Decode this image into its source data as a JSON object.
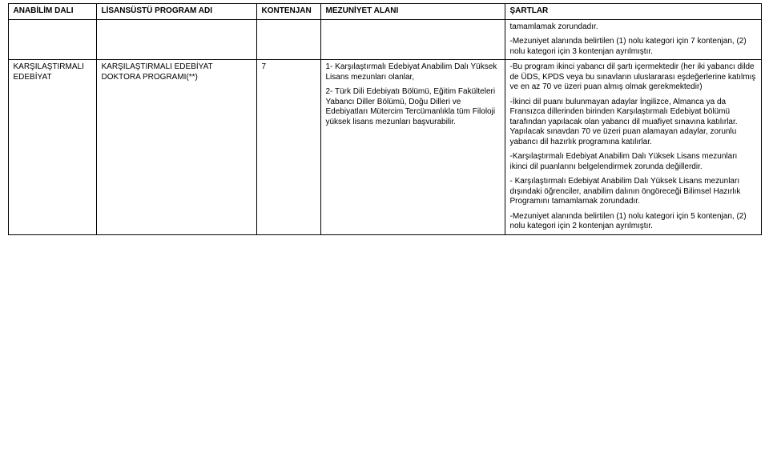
{
  "headers": {
    "col1": "ANABİLİM DALI",
    "col2": "LİSANSÜSTÜ PROGRAM ADI",
    "col3": "KONTENJAN",
    "col4": "MEZUNİYET ALANI",
    "col5": "ŞARTLAR"
  },
  "row1_col5_a": "tamamlamak zorundadır.",
  "row1_col5_b": "-Mezuniyet alanında belirtilen (1) nolu kategori için 7 kontenjan, (2) nolu kategori için 3 kontenjan ayrılmıştır.",
  "row2": {
    "col1": "KARŞILAŞTIRMALI EDEBİYAT",
    "col2": "KARŞILAŞTIRMALI EDEBİYAT DOKTORA PROGRAMI(**)",
    "col3": "7",
    "col4_a": "1- Karşılaştırmalı Edebiyat Anabilim Dalı Yüksek Lisans mezunları olanlar,",
    "col4_b": "2- Türk Dili Edebiyatı Bölümü, Eğitim Fakülteleri Yabancı Diller Bölümü, Doğu Dilleri ve Edebiyatları Mütercim Tercümanlıkla tüm Filoloji yüksek lisans mezunları başvurabilir.",
    "col5_a": "-Bu program ikinci yabancı dil şartı içermektedir (her iki yabancı dilde de ÜDS, KPDS veya bu sınavların uluslararası eşdeğerlerine katılmış ve en az 70 ve üzeri puan almış olmak gerekmektedir)",
    "col5_b": "-İkinci dil puanı bulunmayan adaylar İngilizce, Almanca ya da Fransızca dillerinden birinden Karşılaştırmalı Edebiyat bölümü tarafından yapılacak olan yabancı dil muafiyet sınavına katılırlar. Yapılacak sınavdan 70 ve üzeri puan alamayan adaylar,  zorunlu yabancı dil hazırlık programına katılırlar.",
    "col5_c": "-Karşılaştırmalı Edebiyat Anabilim Dalı Yüksek Lisans mezunları ikinci dil puanlarını belgelendirmek zorunda değillerdir.",
    "col5_d": "- Karşılaştırmalı Edebiyat Anabilim Dalı Yüksek Lisans mezunları dışındaki öğrenciler, anabilim dalının öngöreceği Bilimsel Hazırlık Programını tamamlamak zorundadır.",
    "col5_e": "-Mezuniyet alanında belirtilen (1) nolu kategori için 5 kontenjan, (2) nolu kategori için 2 kontenjan ayrılmıştır."
  }
}
